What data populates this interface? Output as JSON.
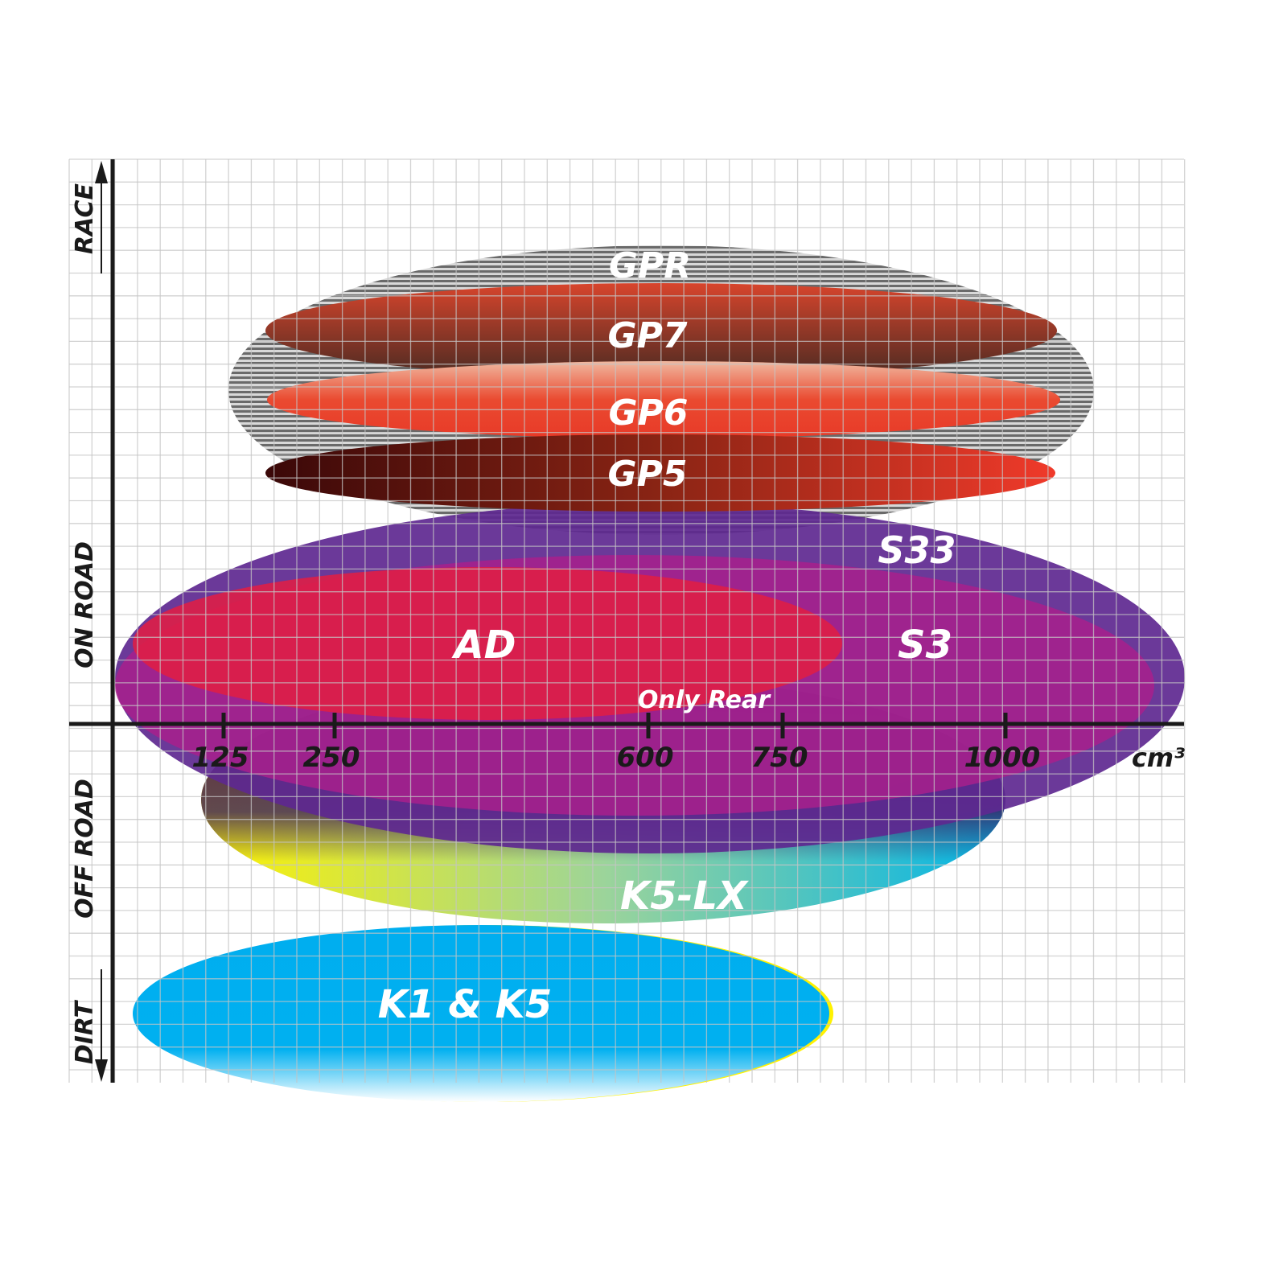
{
  "chart_data": {
    "type": "diagram",
    "x_axis": {
      "unit": "cm³",
      "ticks": [
        "125",
        "250",
        "600",
        "750",
        "1000"
      ]
    },
    "y_axis": {
      "labels": [
        "RACE",
        "ON ROAD",
        "OFF ROAD",
        "DIRT"
      ]
    },
    "grid": true,
    "products": [
      {
        "name": "GPR",
        "color": "#9a9a9a"
      },
      {
        "name": "GP7",
        "color": "#8a3020"
      },
      {
        "name": "GP6",
        "color": "#e8442c"
      },
      {
        "name": "GP5",
        "color": "#b02a1a"
      },
      {
        "name": "S33",
        "color": "#6a2a90"
      },
      {
        "name": "S3",
        "color": "#a0208c"
      },
      {
        "name": "AD",
        "color": "#dc1e48"
      },
      {
        "name": "K5-LX",
        "color": "#40c8c8",
        "note": "Only Rear"
      },
      {
        "name": "K1 & K5",
        "color": "#00aeef"
      }
    ]
  }
}
